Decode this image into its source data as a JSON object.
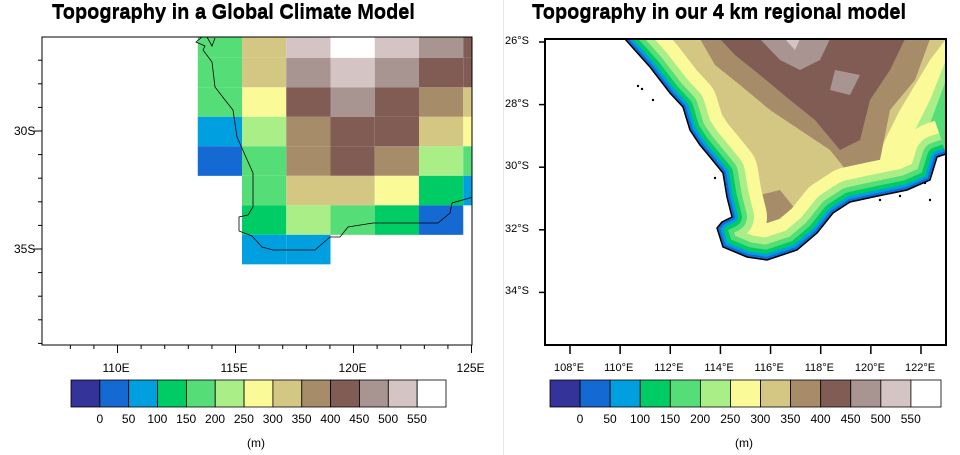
{
  "left_panel": {
    "title": "Topography in a Global Climate Model",
    "lon_ticks": [
      "110E",
      "115E",
      "120E",
      "125E"
    ],
    "lat_ticks": [
      "30S",
      "35S"
    ],
    "colorbar_unit": "(m)"
  },
  "right_panel": {
    "title": "Topography in our 4 km regional model",
    "lon_ticks": [
      "108°E",
      "110°E",
      "112°E",
      "114°E",
      "116°E",
      "118°E",
      "120°E",
      "122°E"
    ],
    "lat_ticks": [
      "26°S",
      "28°S",
      "30°S",
      "32°S",
      "34°S"
    ],
    "colorbar_unit": "(m)"
  },
  "colorbar": {
    "labels": [
      "0",
      "50",
      "100",
      "150",
      "200",
      "250",
      "300",
      "350",
      "400",
      "450",
      "500",
      "550"
    ],
    "colors": [
      "#333399",
      "#1469d2",
      "#00a0e0",
      "#00cc66",
      "#55dd77",
      "#aaee88",
      "#fafa99",
      "#d4c783",
      "#a68c69",
      "#805c55",
      "#a89591",
      "#d4c5c4",
      "#ffffff"
    ]
  },
  "chart_data": [
    {
      "type": "heatmap",
      "title": "Topography in a Global Climate Model",
      "units": "m",
      "xlim": [
        107,
        125
      ],
      "ylim": [
        -39,
        -26
      ],
      "lon_edges": [
        113.4,
        115.275,
        117.15,
        119.025,
        120.9,
        122.775,
        124.65,
        126.525
      ],
      "lat_edges": [
        -26.0,
        -26.9,
        -28.15,
        -29.4,
        -30.65,
        -31.9,
        -33.15,
        -34.4,
        -35.65
      ],
      "levels": [
        0,
        50,
        100,
        150,
        200,
        250,
        300,
        350,
        400,
        450,
        500,
        550
      ],
      "rows": [
        [
          175,
          325,
          525,
          575,
          525,
          475,
          425
        ],
        [
          175,
          325,
          475,
          525,
          475,
          425,
          425
        ],
        [
          175,
          275,
          425,
          475,
          425,
          375,
          325
        ],
        [
          75,
          225,
          375,
          425,
          425,
          325,
          275
        ],
        [
          25,
          175,
          375,
          425,
          375,
          225,
          175
        ],
        [
          null,
          175,
          325,
          325,
          275,
          125,
          75
        ],
        [
          null,
          125,
          225,
          175,
          125,
          25,
          null
        ],
        [
          null,
          75,
          75,
          null,
          null,
          null,
          null
        ]
      ]
    },
    {
      "type": "heatmap",
      "title": "Topography in our 4 km regional model",
      "units": "m",
      "xlim": [
        107,
        123
      ],
      "ylim": [
        -36,
        -26
      ],
      "levels": [
        0,
        50,
        100,
        150,
        200,
        250,
        300,
        350,
        400,
        450,
        500,
        550
      ]
    }
  ]
}
